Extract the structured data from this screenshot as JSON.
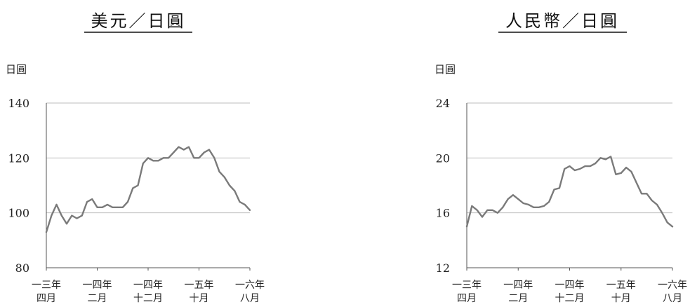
{
  "chart_data": [
    {
      "type": "line",
      "title": "美元／日圓",
      "ylabel": "日圓",
      "ylim": [
        80,
        140
      ],
      "yticks": [
        80,
        100,
        120,
        140
      ],
      "grid": "horizontal",
      "xlim": [
        "2013-04",
        "2016-08"
      ],
      "xticks": [
        {
          "line1": "一三年",
          "line2": "四月"
        },
        {
          "line1": "一四年",
          "line2": "二月"
        },
        {
          "line1": "一四年",
          "line2": "十二月"
        },
        {
          "line1": "一五年",
          "line2": "十月"
        },
        {
          "line1": "一六年",
          "line2": "八月"
        }
      ],
      "line_color": "#7a7a7a",
      "series": [
        {
          "x": [
            "2013-04",
            "2013-05",
            "2013-06",
            "2013-07",
            "2013-08",
            "2013-09",
            "2013-10",
            "2013-11",
            "2013-12",
            "2014-01",
            "2014-02",
            "2014-03",
            "2014-04",
            "2014-05",
            "2014-06",
            "2014-07",
            "2014-08",
            "2014-09",
            "2014-10",
            "2014-11",
            "2014-12",
            "2015-01",
            "2015-02",
            "2015-03",
            "2015-04",
            "2015-05",
            "2015-06",
            "2015-07",
            "2015-08",
            "2015-09",
            "2015-10",
            "2015-11",
            "2015-12",
            "2016-01",
            "2016-02",
            "2016-03",
            "2016-04",
            "2016-05",
            "2016-06",
            "2016-07",
            "2016-08"
          ],
          "values": [
            93,
            99,
            103,
            99,
            96,
            99,
            98,
            99,
            104,
            105,
            102,
            102,
            103,
            102,
            102,
            102,
            104,
            109,
            110,
            118,
            120,
            119,
            119,
            120,
            120,
            122,
            124,
            123,
            124,
            120,
            120,
            122,
            123,
            120,
            115,
            113,
            110,
            108,
            104,
            103,
            101
          ]
        }
      ]
    },
    {
      "type": "line",
      "title": "人民幣／日圓",
      "ylabel": "日圓",
      "ylim": [
        12,
        24
      ],
      "yticks": [
        12,
        16,
        20,
        24
      ],
      "grid": "horizontal",
      "xlim": [
        "2013-04",
        "2016-08"
      ],
      "xticks": [
        {
          "line1": "一三年",
          "line2": "四月"
        },
        {
          "line1": "一四年",
          "line2": "二月"
        },
        {
          "line1": "一四年",
          "line2": "十二月"
        },
        {
          "line1": "一五年",
          "line2": "十月"
        },
        {
          "line1": "一六年",
          "line2": "八月"
        }
      ],
      "line_color": "#7a7a7a",
      "series": [
        {
          "x": [
            "2013-04",
            "2013-05",
            "2013-06",
            "2013-07",
            "2013-08",
            "2013-09",
            "2013-10",
            "2013-11",
            "2013-12",
            "2014-01",
            "2014-02",
            "2014-03",
            "2014-04",
            "2014-05",
            "2014-06",
            "2014-07",
            "2014-08",
            "2014-09",
            "2014-10",
            "2014-11",
            "2014-12",
            "2015-01",
            "2015-02",
            "2015-03",
            "2015-04",
            "2015-05",
            "2015-06",
            "2015-07",
            "2015-08",
            "2015-09",
            "2015-10",
            "2015-11",
            "2015-12",
            "2016-01",
            "2016-02",
            "2016-03",
            "2016-04",
            "2016-05",
            "2016-06",
            "2016-07",
            "2016-08"
          ],
          "values": [
            15.0,
            16.5,
            16.2,
            15.7,
            16.2,
            16.2,
            16.0,
            16.4,
            17.0,
            17.3,
            17.0,
            16.7,
            16.6,
            16.4,
            16.4,
            16.5,
            16.8,
            17.7,
            17.8,
            19.2,
            19.4,
            19.1,
            19.2,
            19.4,
            19.4,
            19.6,
            20.0,
            19.9,
            20.1,
            18.8,
            18.9,
            19.3,
            19.0,
            18.2,
            17.4,
            17.4,
            16.9,
            16.6,
            16.0,
            15.3,
            15.0
          ]
        }
      ]
    }
  ]
}
